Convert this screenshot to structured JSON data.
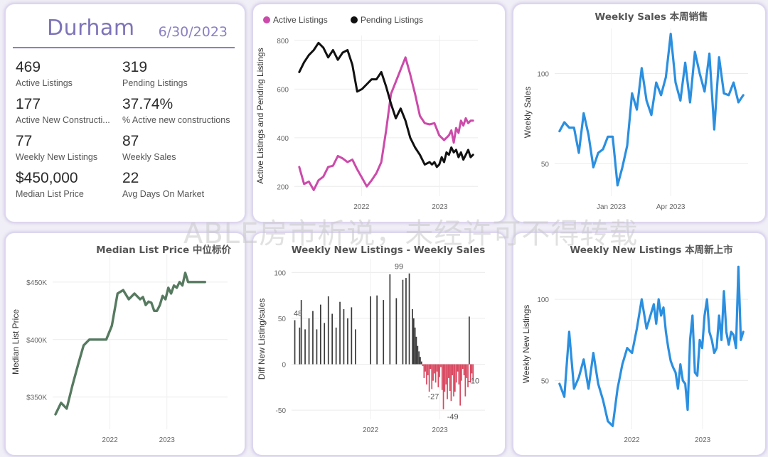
{
  "colors": {
    "active": "#cc4aaa",
    "pending": "#111111",
    "blue": "#2b8fe0",
    "green": "#567a60",
    "bar_pos": "#3a3a3a",
    "bar_neg": "#d9475f",
    "accent": "#7e74b8"
  },
  "kpi": {
    "city": "Durham",
    "date": "6/30/2023",
    "items": [
      {
        "value": "469",
        "label": "Active Listings"
      },
      {
        "value": "319",
        "label": "Pending Listings"
      },
      {
        "value": "177",
        "label": "Active New Constructi..."
      },
      {
        "value": "37.74%",
        "label": "% Active new constructions"
      },
      {
        "value": "77",
        "label": "Weekly New Listings"
      },
      {
        "value": "87",
        "label": "Weekly Sales"
      },
      {
        "value": "$450,000",
        "label": "Median List Price"
      },
      {
        "value": "22",
        "label": "Avg Days On Market"
      }
    ]
  },
  "watermark": "ABLE房市析说，未经许可不得转载",
  "chart_data": [
    {
      "id": "active-pending",
      "type": "line",
      "title": "",
      "ylabel": "Active Listings and Pending Listings",
      "xlabel": "",
      "ylim": [
        160,
        820
      ],
      "xlim": [
        0,
        76
      ],
      "yticks": [
        200,
        400,
        600,
        800
      ],
      "xticks": [
        {
          "x": 27.8,
          "label": "2022"
        },
        {
          "x": 60.2,
          "label": "2023"
        }
      ],
      "legend": [
        "Active Listings",
        "Pending Listings"
      ],
      "series": [
        {
          "name": "Active Listings",
          "color": "active",
          "x": [
            2,
            4,
            6,
            8,
            10,
            12,
            14,
            16,
            18,
            20,
            22,
            24,
            26,
            28,
            30,
            32,
            34,
            36,
            38,
            40,
            42,
            44,
            46,
            48,
            50,
            52,
            54,
            56,
            58,
            60,
            62,
            64,
            65,
            66,
            67,
            68,
            69,
            70,
            71,
            72,
            73,
            74
          ],
          "y": [
            280,
            210,
            220,
            185,
            225,
            240,
            280,
            285,
            325,
            315,
            300,
            310,
            270,
            235,
            200,
            225,
            255,
            300,
            430,
            580,
            630,
            680,
            730,
            660,
            580,
            490,
            460,
            455,
            460,
            410,
            390,
            410,
            430,
            380,
            440,
            420,
            470,
            450,
            480,
            460,
            470,
            470
          ]
        },
        {
          "name": "Pending Listings",
          "color": "pending",
          "x": [
            2,
            4,
            6,
            8,
            10,
            12,
            14,
            16,
            18,
            20,
            22,
            24,
            26,
            28,
            30,
            32,
            34,
            36,
            38,
            40,
            42,
            44,
            46,
            48,
            50,
            52,
            54,
            56,
            57,
            58,
            59,
            60,
            61,
            62,
            63,
            64,
            65,
            66,
            67,
            68,
            69,
            70,
            71,
            72,
            73,
            74
          ],
          "y": [
            670,
            710,
            740,
            760,
            790,
            770,
            730,
            760,
            720,
            750,
            760,
            700,
            590,
            600,
            620,
            640,
            640,
            670,
            610,
            540,
            480,
            520,
            470,
            400,
            360,
            330,
            290,
            300,
            290,
            300,
            280,
            290,
            320,
            300,
            340,
            330,
            360,
            340,
            350,
            320,
            340,
            310,
            330,
            350,
            320,
            330
          ]
        }
      ]
    },
    {
      "id": "weekly-sales",
      "type": "line",
      "title": "Weekly Sales 本周销售",
      "ylabel": "Weekly Sales",
      "xlabel": "",
      "ylim": [
        32,
        125
      ],
      "xlim": [
        0,
        40
      ],
      "yticks": [
        50,
        100
      ],
      "xticks": [
        {
          "x": 11.7,
          "label": "Jan 2023"
        },
        {
          "x": 24.0,
          "label": "Apr 2023"
        }
      ],
      "series": [
        {
          "name": "Weekly Sales",
          "color": "blue",
          "x": [
            1,
            2,
            3,
            4,
            5,
            6,
            7,
            8,
            9,
            10,
            11,
            12,
            13,
            14,
            15,
            16,
            17,
            18,
            19,
            20,
            21,
            22,
            23,
            24,
            25,
            26,
            27,
            28,
            29,
            30,
            31,
            32,
            33,
            34,
            35,
            36,
            37,
            38,
            39
          ],
          "y": [
            68,
            73,
            70,
            70,
            56,
            78,
            66,
            48,
            56,
            58,
            65,
            65,
            38,
            48,
            60,
            89,
            80,
            103,
            85,
            77,
            95,
            88,
            98,
            122,
            95,
            85,
            106,
            84,
            112,
            100,
            90,
            111,
            69,
            109,
            89,
            88,
            95,
            84,
            88
          ]
        }
      ]
    },
    {
      "id": "median-price",
      "type": "line",
      "title": "Median List Price  中位标价",
      "ylabel": "Median List Price",
      "xlabel": "",
      "ylim": [
        322000,
        474000
      ],
      "xlim": [
        0,
        62
      ],
      "yticks": [
        {
          "v": 350000,
          "label": "$350K"
        },
        {
          "v": 400000,
          "label": "$400K"
        },
        {
          "v": 450000,
          "label": "$450K"
        }
      ],
      "xticks": [
        {
          "x": 20.3,
          "label": "2022"
        },
        {
          "x": 40.5,
          "label": "2023"
        }
      ],
      "series": [
        {
          "name": "Median List Price",
          "color": "green",
          "x": [
            1,
            3,
            5,
            7,
            9,
            11,
            13,
            15,
            17,
            19,
            21,
            23,
            25,
            27,
            29,
            31,
            32,
            33,
            34,
            35,
            36,
            37,
            38,
            39,
            40,
            41,
            42,
            43,
            44,
            45,
            46,
            47,
            48,
            49,
            50,
            52,
            54
          ],
          "y": [
            335000,
            345000,
            340000,
            360000,
            378000,
            395000,
            400000,
            400000,
            400000,
            400000,
            412000,
            440000,
            443000,
            435000,
            440000,
            435000,
            437000,
            430000,
            433000,
            432000,
            425000,
            425000,
            430000,
            438000,
            435000,
            445000,
            440000,
            447000,
            445000,
            450000,
            447000,
            458000,
            450000,
            450000,
            450000,
            450000,
            450000
          ]
        }
      ]
    },
    {
      "id": "diff",
      "type": "bar",
      "title": "Weekly New Listings - Weekly Sales",
      "ylabel": "Diff New Listing/sales",
      "xlabel": "",
      "ylim": [
        -60,
        115
      ],
      "xlim": [
        0,
        60
      ],
      "yticks": [
        -50,
        0,
        50,
        100
      ],
      "xticks": [
        {
          "x": 24.5,
          "label": "2022"
        },
        {
          "x": 46.0,
          "label": "2023"
        }
      ],
      "labels": [
        {
          "x": 2,
          "y": 48,
          "text": "48"
        },
        {
          "x": 33.3,
          "y": 99,
          "text": "99"
        },
        {
          "x": 44,
          "y": -27,
          "text": "-27"
        },
        {
          "x": 50,
          "y": -49,
          "text": "-49"
        },
        {
          "x": 56.5,
          "y": -10,
          "text": "-10"
        }
      ],
      "x": [
        1,
        2.5,
        3,
        4.2,
        5.4,
        6.6,
        7.8,
        9,
        10.2,
        11.4,
        12.6,
        13.8,
        15,
        16.2,
        17.4,
        18.6,
        19.8,
        24.5,
        26.5,
        28.5,
        30.5,
        32.5,
        34.5,
        35.5,
        36.5,
        37.5,
        37.9,
        38.3,
        38.7,
        39.1,
        39.5,
        39.9,
        40.3,
        40.7,
        41.1,
        41.5,
        41.9,
        42.3,
        42.7,
        43.1,
        43.5,
        43.9,
        44.3,
        44.7,
        45.1,
        45.5,
        45.9,
        46.3,
        46.7,
        47.1,
        47.5,
        47.9,
        48.3,
        48.7,
        49.1,
        49.5,
        49.9,
        50.3,
        50.7,
        51.1,
        51.5,
        51.9,
        52.3,
        52.7,
        53.1,
        53.5,
        53.9,
        54.3,
        54.7,
        55.1,
        55.5,
        55.9,
        56.3
      ],
      "values": [
        48,
        40,
        70,
        38,
        50,
        58,
        38,
        65,
        45,
        74,
        55,
        40,
        68,
        60,
        50,
        62,
        38,
        74,
        75,
        70,
        98,
        72,
        92,
        94,
        99,
        60,
        50,
        40,
        30,
        20,
        14,
        8,
        3,
        -2,
        -15,
        -8,
        -22,
        -12,
        -30,
        -5,
        -27,
        -18,
        -10,
        -20,
        -8,
        -25,
        -14,
        -3,
        -28,
        -49,
        -30,
        -22,
        -38,
        -15,
        -29,
        -40,
        -12,
        -35,
        -30,
        -20,
        -8,
        -22,
        -45,
        -18,
        -5,
        -12,
        -35,
        -15,
        -25,
        52,
        -20,
        -10,
        -18
      ]
    },
    {
      "id": "new-listings",
      "type": "line",
      "title": "Weekly New Listings  本周新上市",
      "ylabel": "Weekly New Listings",
      "xlabel": "",
      "ylim": [
        20,
        125
      ],
      "xlim": [
        0,
        80
      ],
      "yticks": [
        50,
        100
      ],
      "xticks": [
        {
          "x": 31.9,
          "label": "2022"
        },
        {
          "x": 61.2,
          "label": "2023"
        }
      ],
      "series": [
        {
          "name": "Weekly New Listings",
          "color": "blue",
          "x": [
            2,
            4,
            6,
            8,
            10,
            12,
            14,
            16,
            18,
            20,
            22,
            24,
            26,
            28,
            30,
            32,
            34,
            36,
            38,
            40,
            41,
            42,
            43,
            44,
            45,
            46,
            47,
            48,
            49,
            50,
            51,
            52,
            53,
            54,
            55,
            56,
            57,
            58,
            59,
            60,
            61,
            62,
            63,
            64,
            65,
            66,
            67,
            68,
            69,
            70,
            71,
            72,
            73,
            74,
            75,
            76,
            77,
            78
          ],
          "y": [
            48,
            40,
            80,
            45,
            52,
            63,
            45,
            67,
            48,
            38,
            25,
            22,
            45,
            60,
            70,
            67,
            82,
            100,
            82,
            92,
            97,
            85,
            100,
            90,
            95,
            80,
            70,
            62,
            58,
            55,
            45,
            60,
            50,
            48,
            32,
            75,
            90,
            55,
            53,
            75,
            70,
            90,
            100,
            80,
            75,
            67,
            70,
            90,
            75,
            105,
            80,
            72,
            80,
            78,
            70,
            120,
            75,
            80
          ]
        }
      ]
    }
  ]
}
